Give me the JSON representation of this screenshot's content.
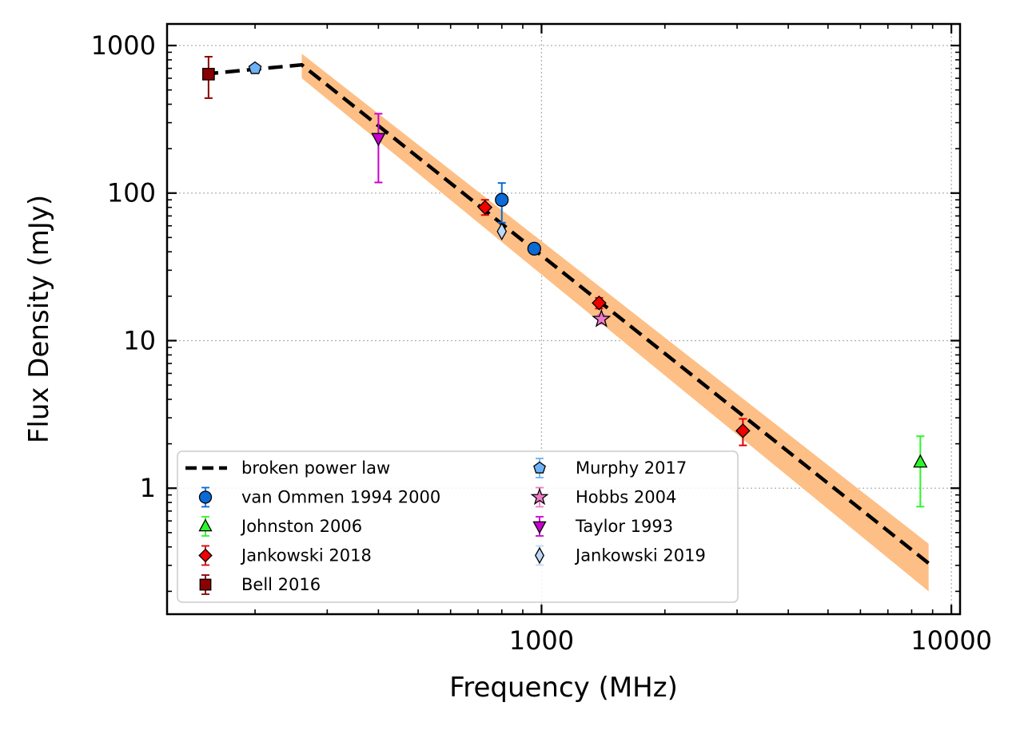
{
  "chart_data": {
    "type": "scatter",
    "xlabel": "Frequency (MHz)",
    "ylabel": "Flux Density (mJy)",
    "xscale": "log",
    "yscale": "log",
    "xlim": [
      122,
      10500
    ],
    "ylim": [
      0.14,
      1400
    ],
    "x_ticks": [
      {
        "value": 1000,
        "label": "1000"
      },
      {
        "value": 10000,
        "label": "10000"
      }
    ],
    "y_ticks": [
      {
        "value": 1,
        "label": "1"
      },
      {
        "value": 10,
        "label": "10"
      },
      {
        "value": 100,
        "label": "100"
      },
      {
        "value": 1000,
        "label": "1000"
      }
    ],
    "grid": true,
    "legend_position": "lower-left",
    "model": {
      "name": "broken power law",
      "break_freq": 260,
      "x": [
        150,
        260,
        8800
      ],
      "y": [
        640,
        740,
        0.31
      ],
      "band_lower": [
        [
          260,
          600
        ],
        [
          8800,
          0.2
        ]
      ],
      "band_upper": [
        [
          260,
          880
        ],
        [
          8800,
          0.42
        ]
      ],
      "line_color": "#000000",
      "band_color": "#FDBF85"
    },
    "series": [
      {
        "name": "van Ommen 1994 2000",
        "marker": "circle",
        "color": "#0B6AD6",
        "ecolor": "#0B6AD6",
        "points": [
          {
            "x": 800,
            "y": 90,
            "lo": 63,
            "hi": 117
          },
          {
            "x": 960,
            "y": 42,
            "lo": 39,
            "hi": 45
          }
        ]
      },
      {
        "name": "Johnston 2006",
        "marker": "triangle-up",
        "color": "#2CF52C",
        "ecolor": "#2CF52C",
        "points": [
          {
            "x": 8400,
            "y": 1.5,
            "lo": 0.75,
            "hi": 2.25
          }
        ]
      },
      {
        "name": "Jankowski 2018",
        "marker": "diamond",
        "color": "#F00000",
        "ecolor": "#E00000",
        "points": [
          {
            "x": 728,
            "y": 80,
            "lo": 71,
            "hi": 90
          },
          {
            "x": 1382,
            "y": 18,
            "lo": 16.5,
            "hi": 19.5
          },
          {
            "x": 3100,
            "y": 2.45,
            "lo": 1.95,
            "hi": 2.95
          }
        ]
      },
      {
        "name": "Bell 2016",
        "marker": "square",
        "color": "#8B0000",
        "ecolor": "#8B0000",
        "points": [
          {
            "x": 154,
            "y": 640,
            "lo": 440,
            "hi": 840
          }
        ]
      },
      {
        "name": "Murphy 2017",
        "marker": "pentagon",
        "color": "#6CB2F5",
        "ecolor": "#6CB2F5",
        "points": [
          {
            "x": 200,
            "y": 700,
            "lo": 690,
            "hi": 710
          }
        ]
      },
      {
        "name": "Hobbs 2004",
        "marker": "star",
        "color": "#F07AC8",
        "ecolor": "#F07AC8",
        "points": [
          {
            "x": 1400,
            "y": 14,
            "lo": 13,
            "hi": 15
          }
        ]
      },
      {
        "name": "Taylor 1993",
        "marker": "triangle-down",
        "color": "#C800D0",
        "ecolor": "#C800D0",
        "points": [
          {
            "x": 400,
            "y": 235,
            "lo": 118,
            "hi": 345
          }
        ]
      },
      {
        "name": "Jankowski 2019",
        "marker": "thin-diamond",
        "color": "#BBD9F7",
        "ecolor": "#BBD9F7",
        "points": [
          {
            "x": 800,
            "y": 55,
            "lo": 53,
            "hi": 57
          }
        ]
      }
    ]
  }
}
